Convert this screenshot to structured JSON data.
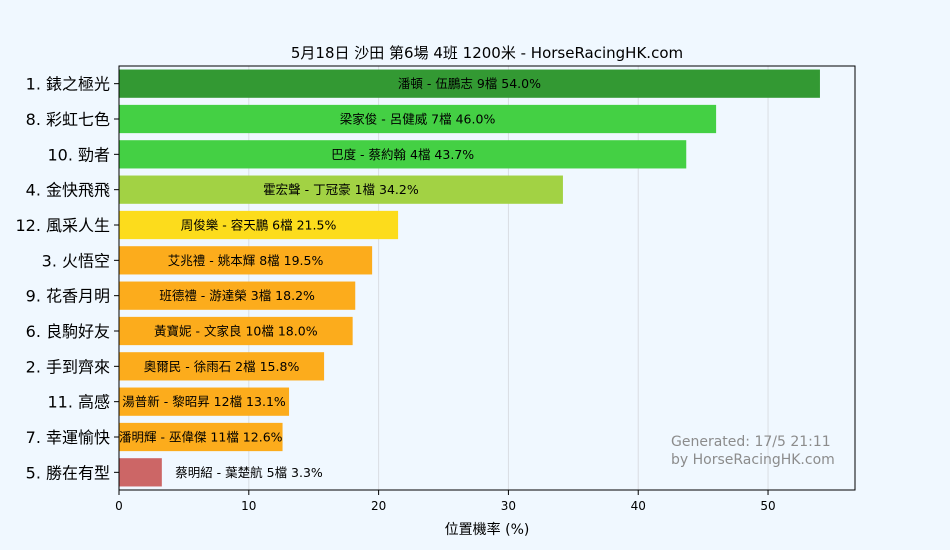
{
  "chart_data": {
    "type": "bar",
    "orientation": "horizontal",
    "title": "5月18日  沙田  第6場  4班  1200米 - HorseRacingHK.com",
    "xlabel": "位置機率 (%)",
    "ylabel": "",
    "xlim": [
      0,
      56.7
    ],
    "xticks": [
      0,
      10,
      20,
      30,
      40,
      50
    ],
    "grid": "vertical",
    "categories": [
      "1. 錶之極光",
      "8. 彩虹七色",
      "10. 勁者",
      "4. 金快飛飛",
      "12. 風采人生",
      "3. 火悟空",
      "9. 花香月明",
      "6. 良駒好友",
      "2. 手到齊來",
      "11. 高感",
      "7. 幸運愉快",
      "5. 勝在有型"
    ],
    "values": [
      54.0,
      46.0,
      43.7,
      34.2,
      21.5,
      19.5,
      18.2,
      18.0,
      15.8,
      13.1,
      12.6,
      3.3
    ],
    "bar_labels": [
      "潘頓 - 伍鵬志 9檔  54.0%",
      "梁家俊 - 呂健威 7檔  46.0%",
      "巴度 - 蔡約翰 4檔  43.7%",
      "霍宏聲 - 丁冠豪 1檔  34.2%",
      "周俊樂 - 容天鵬 6檔  21.5%",
      "艾兆禮 - 姚本輝 8檔  19.5%",
      "班德禮 - 游達榮 3檔  18.2%",
      "黃寶妮 - 文家良 10檔  18.0%",
      "奧爾民 - 徐雨石 2檔  15.8%",
      "湯普新 - 黎昭昇 12檔  13.1%",
      "潘明輝 - 巫偉傑 11檔  12.6%",
      "蔡明紹 - 葉楚航 5檔  3.3%"
    ],
    "colors": [
      "#339933",
      "#44d044",
      "#44d044",
      "#a2d244",
      "#fcdc1c",
      "#fcac1c",
      "#fcac1c",
      "#fcac1c",
      "#fcac1c",
      "#fcac1c",
      "#fcac1c",
      "#cc6666"
    ],
    "annotation": [
      "Generated: 17/5 21:11",
      "by HorseRacingHK.com"
    ]
  }
}
